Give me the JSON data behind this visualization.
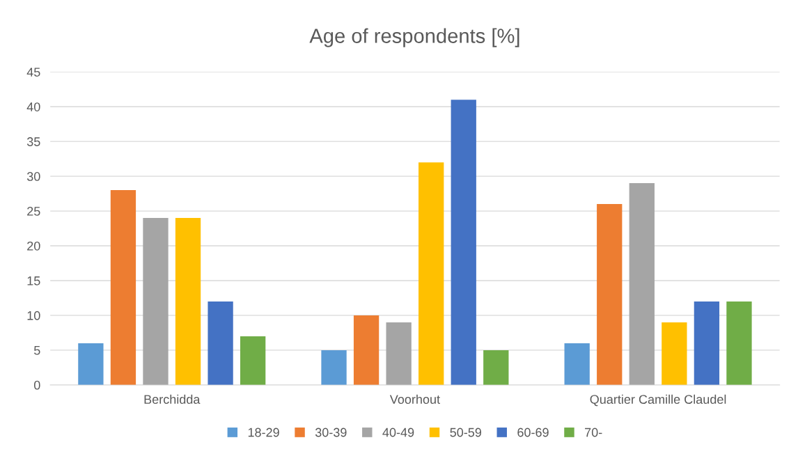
{
  "chart_data": {
    "type": "bar",
    "title": "Age of respondents [%]",
    "categories": [
      "Berchidda",
      "Voorhout",
      "Quartier Camille Claudel"
    ],
    "series": [
      {
        "name": "18-29",
        "color": "#5b9bd5",
        "values": [
          6,
          5,
          6
        ]
      },
      {
        "name": "30-39",
        "color": "#ed7d31",
        "values": [
          28,
          10,
          26
        ]
      },
      {
        "name": "40-49",
        "color": "#a5a5a5",
        "values": [
          24,
          9,
          29
        ]
      },
      {
        "name": "50-59",
        "color": "#ffc000",
        "values": [
          24,
          32,
          9
        ]
      },
      {
        "name": "60-69",
        "color": "#4472c4",
        "values": [
          12,
          41,
          12
        ]
      },
      {
        "name": "70-",
        "color": "#70ad47",
        "values": [
          7,
          5,
          12
        ]
      }
    ],
    "ylim": [
      0,
      45
    ],
    "yticks": [
      0,
      5,
      10,
      15,
      20,
      25,
      30,
      35,
      40,
      45
    ],
    "grid": "y",
    "legend": "bottom"
  }
}
